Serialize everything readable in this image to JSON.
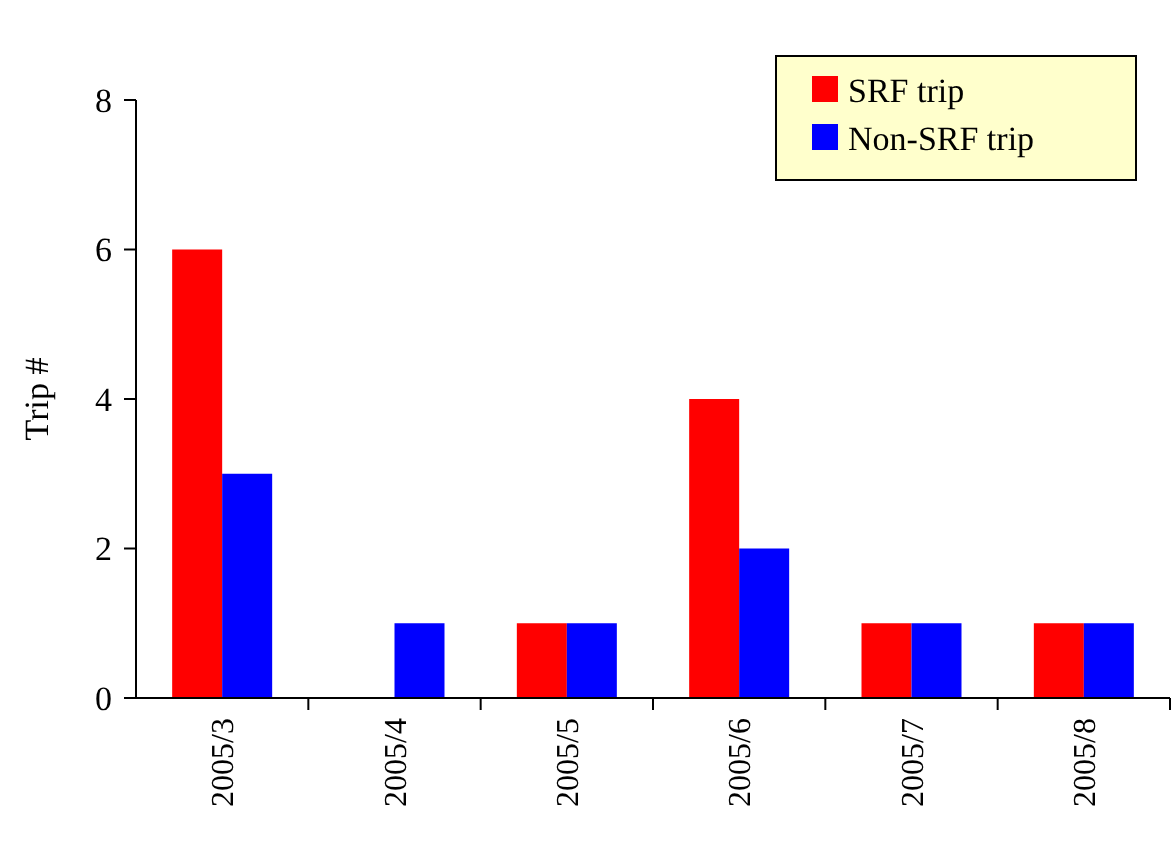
{
  "chart_data": {
    "type": "bar",
    "ylabel": "Trip #",
    "categories": [
      "2005/3",
      "2005/4",
      "2005/5",
      "2005/6",
      "2005/7",
      "2005/8"
    ],
    "series": [
      {
        "name": "SRF trip",
        "color": "#ff0000",
        "values": [
          6,
          0,
          1,
          4,
          1,
          1
        ]
      },
      {
        "name": "Non-SRF trip",
        "color": "#0000ff",
        "values": [
          3,
          1,
          1,
          2,
          1,
          1
        ]
      }
    ],
    "ylim": [
      0,
      8
    ],
    "yticks": [
      0,
      2,
      4,
      6,
      8
    ],
    "legend": "top right"
  }
}
